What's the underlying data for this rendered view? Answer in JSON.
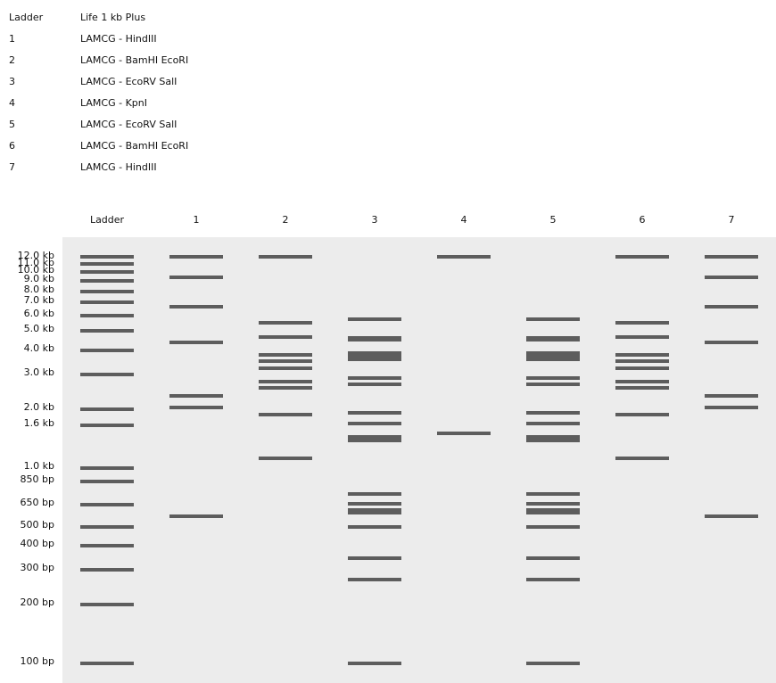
{
  "legend": [
    {
      "lane": "Ladder",
      "desc": "Life 1 kb Plus"
    },
    {
      "lane": "1",
      "desc": "LAMCG - HindIII"
    },
    {
      "lane": "2",
      "desc": "LAMCG - BamHI EcoRI"
    },
    {
      "lane": "3",
      "desc": "LAMCG - EcoRV SalI"
    },
    {
      "lane": "4",
      "desc": "LAMCG - KpnI"
    },
    {
      "lane": "5",
      "desc": "LAMCG - EcoRV SalI"
    },
    {
      "lane": "6",
      "desc": "LAMCG - BamHI EcoRI"
    },
    {
      "lane": "7",
      "desc": "LAMCG - HindIII"
    }
  ],
  "lanes": [
    "Ladder",
    "1",
    "2",
    "3",
    "4",
    "5",
    "6",
    "7"
  ],
  "size_labels": [
    "12.0 kb",
    "11.0 kb",
    "10.0 kb",
    "9.0 kb",
    "8.0 kb",
    "7.0 kb",
    "6.0 kb",
    "5.0 kb",
    "4.0 kb",
    "3.0 kb",
    "2.0 kb",
    "1.6 kb",
    "1.0 kb",
    "850 bp",
    "650 bp",
    "500 bp",
    "400 bp",
    "300 bp",
    "200 bp",
    "100 bp"
  ],
  "colors": {
    "gel_background": "#ececec",
    "band": "#5d5d5d"
  }
}
